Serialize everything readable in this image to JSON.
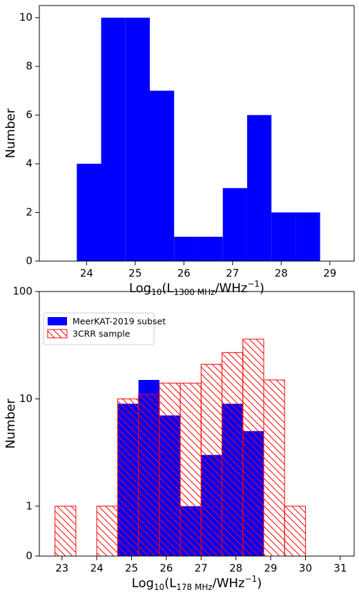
{
  "chart_data": [
    {
      "type": "histogram",
      "ylabel": "Number",
      "xlabel": [
        "Log",
        "10",
        "(L",
        "1300 MHz",
        "/WHz",
        "−1",
        ")"
      ],
      "bins": [
        23.8,
        24.3,
        24.8,
        25.3,
        25.8,
        26.3,
        26.8,
        27.3,
        27.8,
        28.3,
        28.8
      ],
      "values": [
        4,
        10,
        10,
        7,
        1,
        1,
        3,
        6,
        2,
        2
      ],
      "color": "#0000ff",
      "xlim": [
        23.03,
        29.5
      ],
      "xticks": [
        24,
        25,
        26,
        27,
        28,
        29
      ],
      "ylim": [
        0,
        10.5
      ],
      "yticks": [
        0,
        2,
        4,
        6,
        8,
        10
      ]
    },
    {
      "type": "histogram",
      "ylabel": "Number",
      "xlabel": [
        "Log",
        "10",
        "(L",
        "178 MHz",
        "/WHz",
        "−1",
        ")"
      ],
      "bins": [
        22.8,
        23.4,
        24.0,
        24.6,
        25.2,
        25.8,
        26.4,
        27.0,
        27.6,
        28.2,
        28.8,
        29.4,
        30.0
      ],
      "series": [
        {
          "name": "MeerKAT-2019 subset",
          "color": "#0000ff",
          "hatch": false,
          "values": [
            0,
            0,
            0,
            9,
            15,
            7,
            1,
            3,
            9,
            5,
            0,
            0
          ]
        },
        {
          "name": "3CRR sample",
          "color": "#ff0000",
          "hatch": true,
          "values": [
            1,
            0,
            1,
            10,
            11,
            14,
            14,
            21,
            27,
            36,
            15,
            1
          ]
        }
      ],
      "xlim": [
        22.35,
        31.4
      ],
      "xticks": [
        23,
        24,
        25,
        26,
        27,
        28,
        29,
        30,
        31
      ],
      "yscale": "symlog",
      "ylim": [
        0,
        100
      ],
      "yticks": [
        0,
        1,
        10,
        100
      ],
      "legend": "upper left"
    }
  ]
}
